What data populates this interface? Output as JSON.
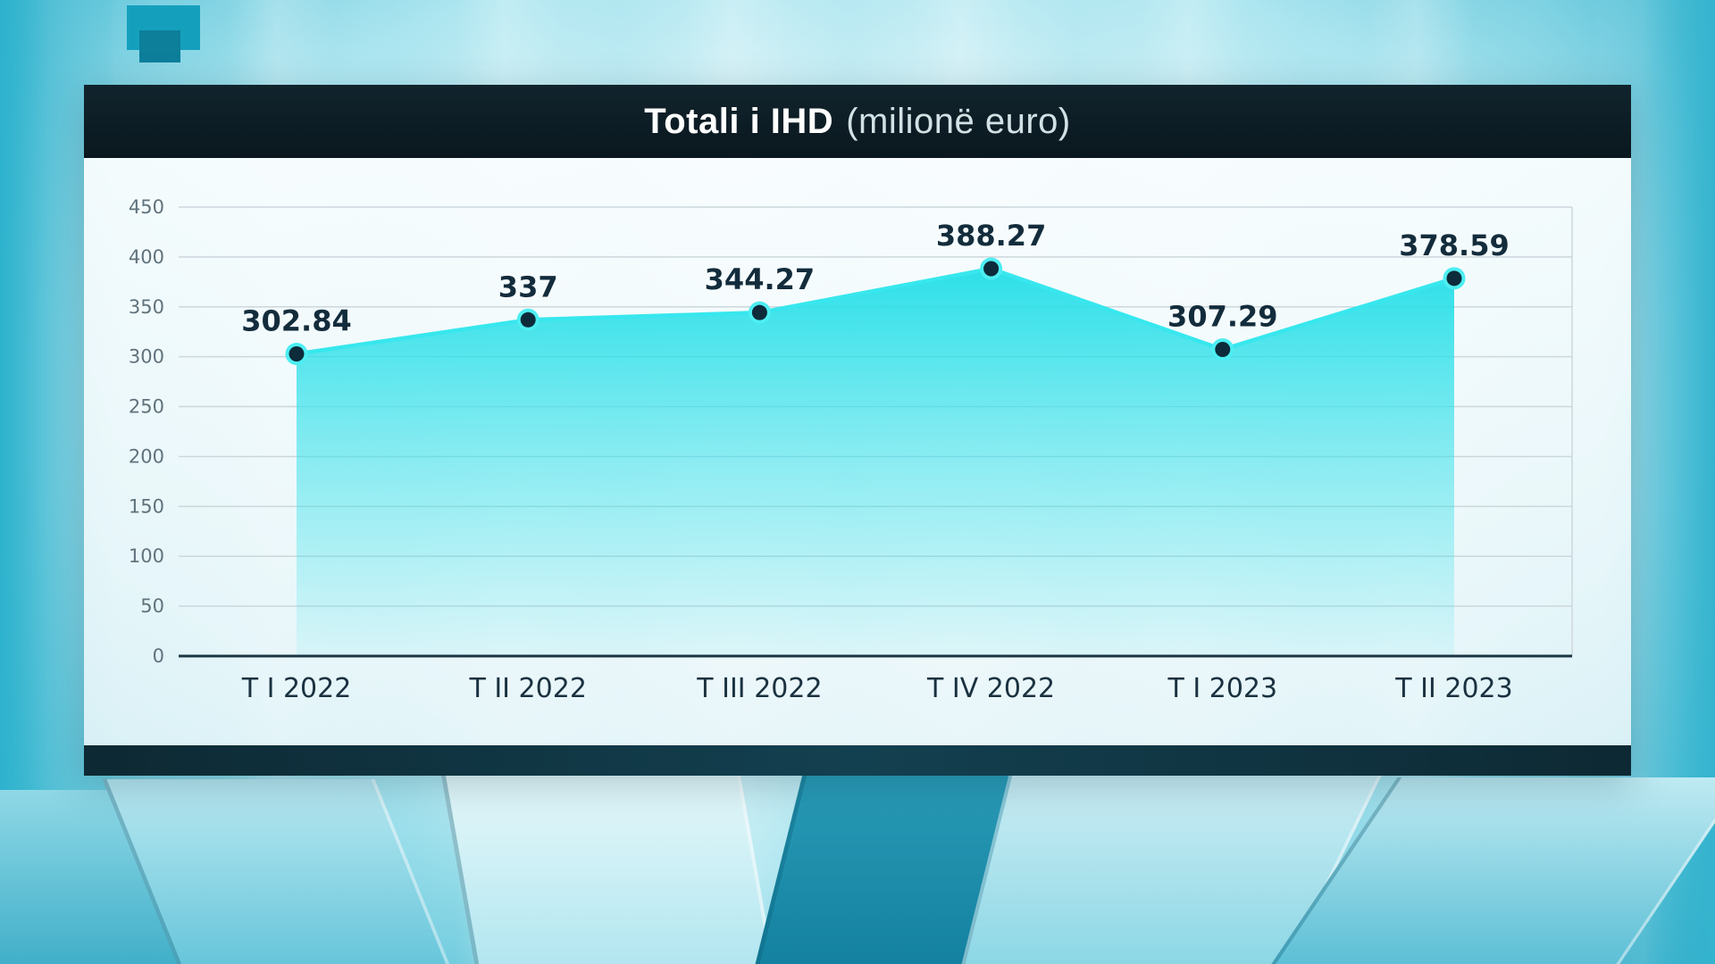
{
  "header": {
    "title_bold": "Totali i IHD",
    "title_light": "(milionë euro)"
  },
  "chart_data": {
    "type": "area",
    "title": "Totali i IHD (milionë euro)",
    "categories": [
      "T I 2022",
      "T II 2022",
      "T III 2022",
      "T IV 2022",
      "T I 2023",
      "T II 2023"
    ],
    "values": [
      302.84,
      337,
      344.27,
      388.27,
      307.29,
      378.59
    ],
    "value_labels": [
      "302.84",
      "337",
      "344.27",
      "388.27",
      "307.29",
      "378.59"
    ],
    "xlabel": "",
    "ylabel": "",
    "ylim": [
      0,
      450
    ],
    "ytick_step": 50,
    "grid": true,
    "legend": "none",
    "colors": {
      "area_top": "#27dfe8",
      "line": "#38e7ee",
      "point_fill": "#0d2b3a",
      "point_ring": "#4deef2",
      "value_label": "#132c3c",
      "axis_label": "#1a3140",
      "ytick": "#60727c",
      "grid_line": "#ccd7dc",
      "baseline": "#1b3642"
    }
  }
}
